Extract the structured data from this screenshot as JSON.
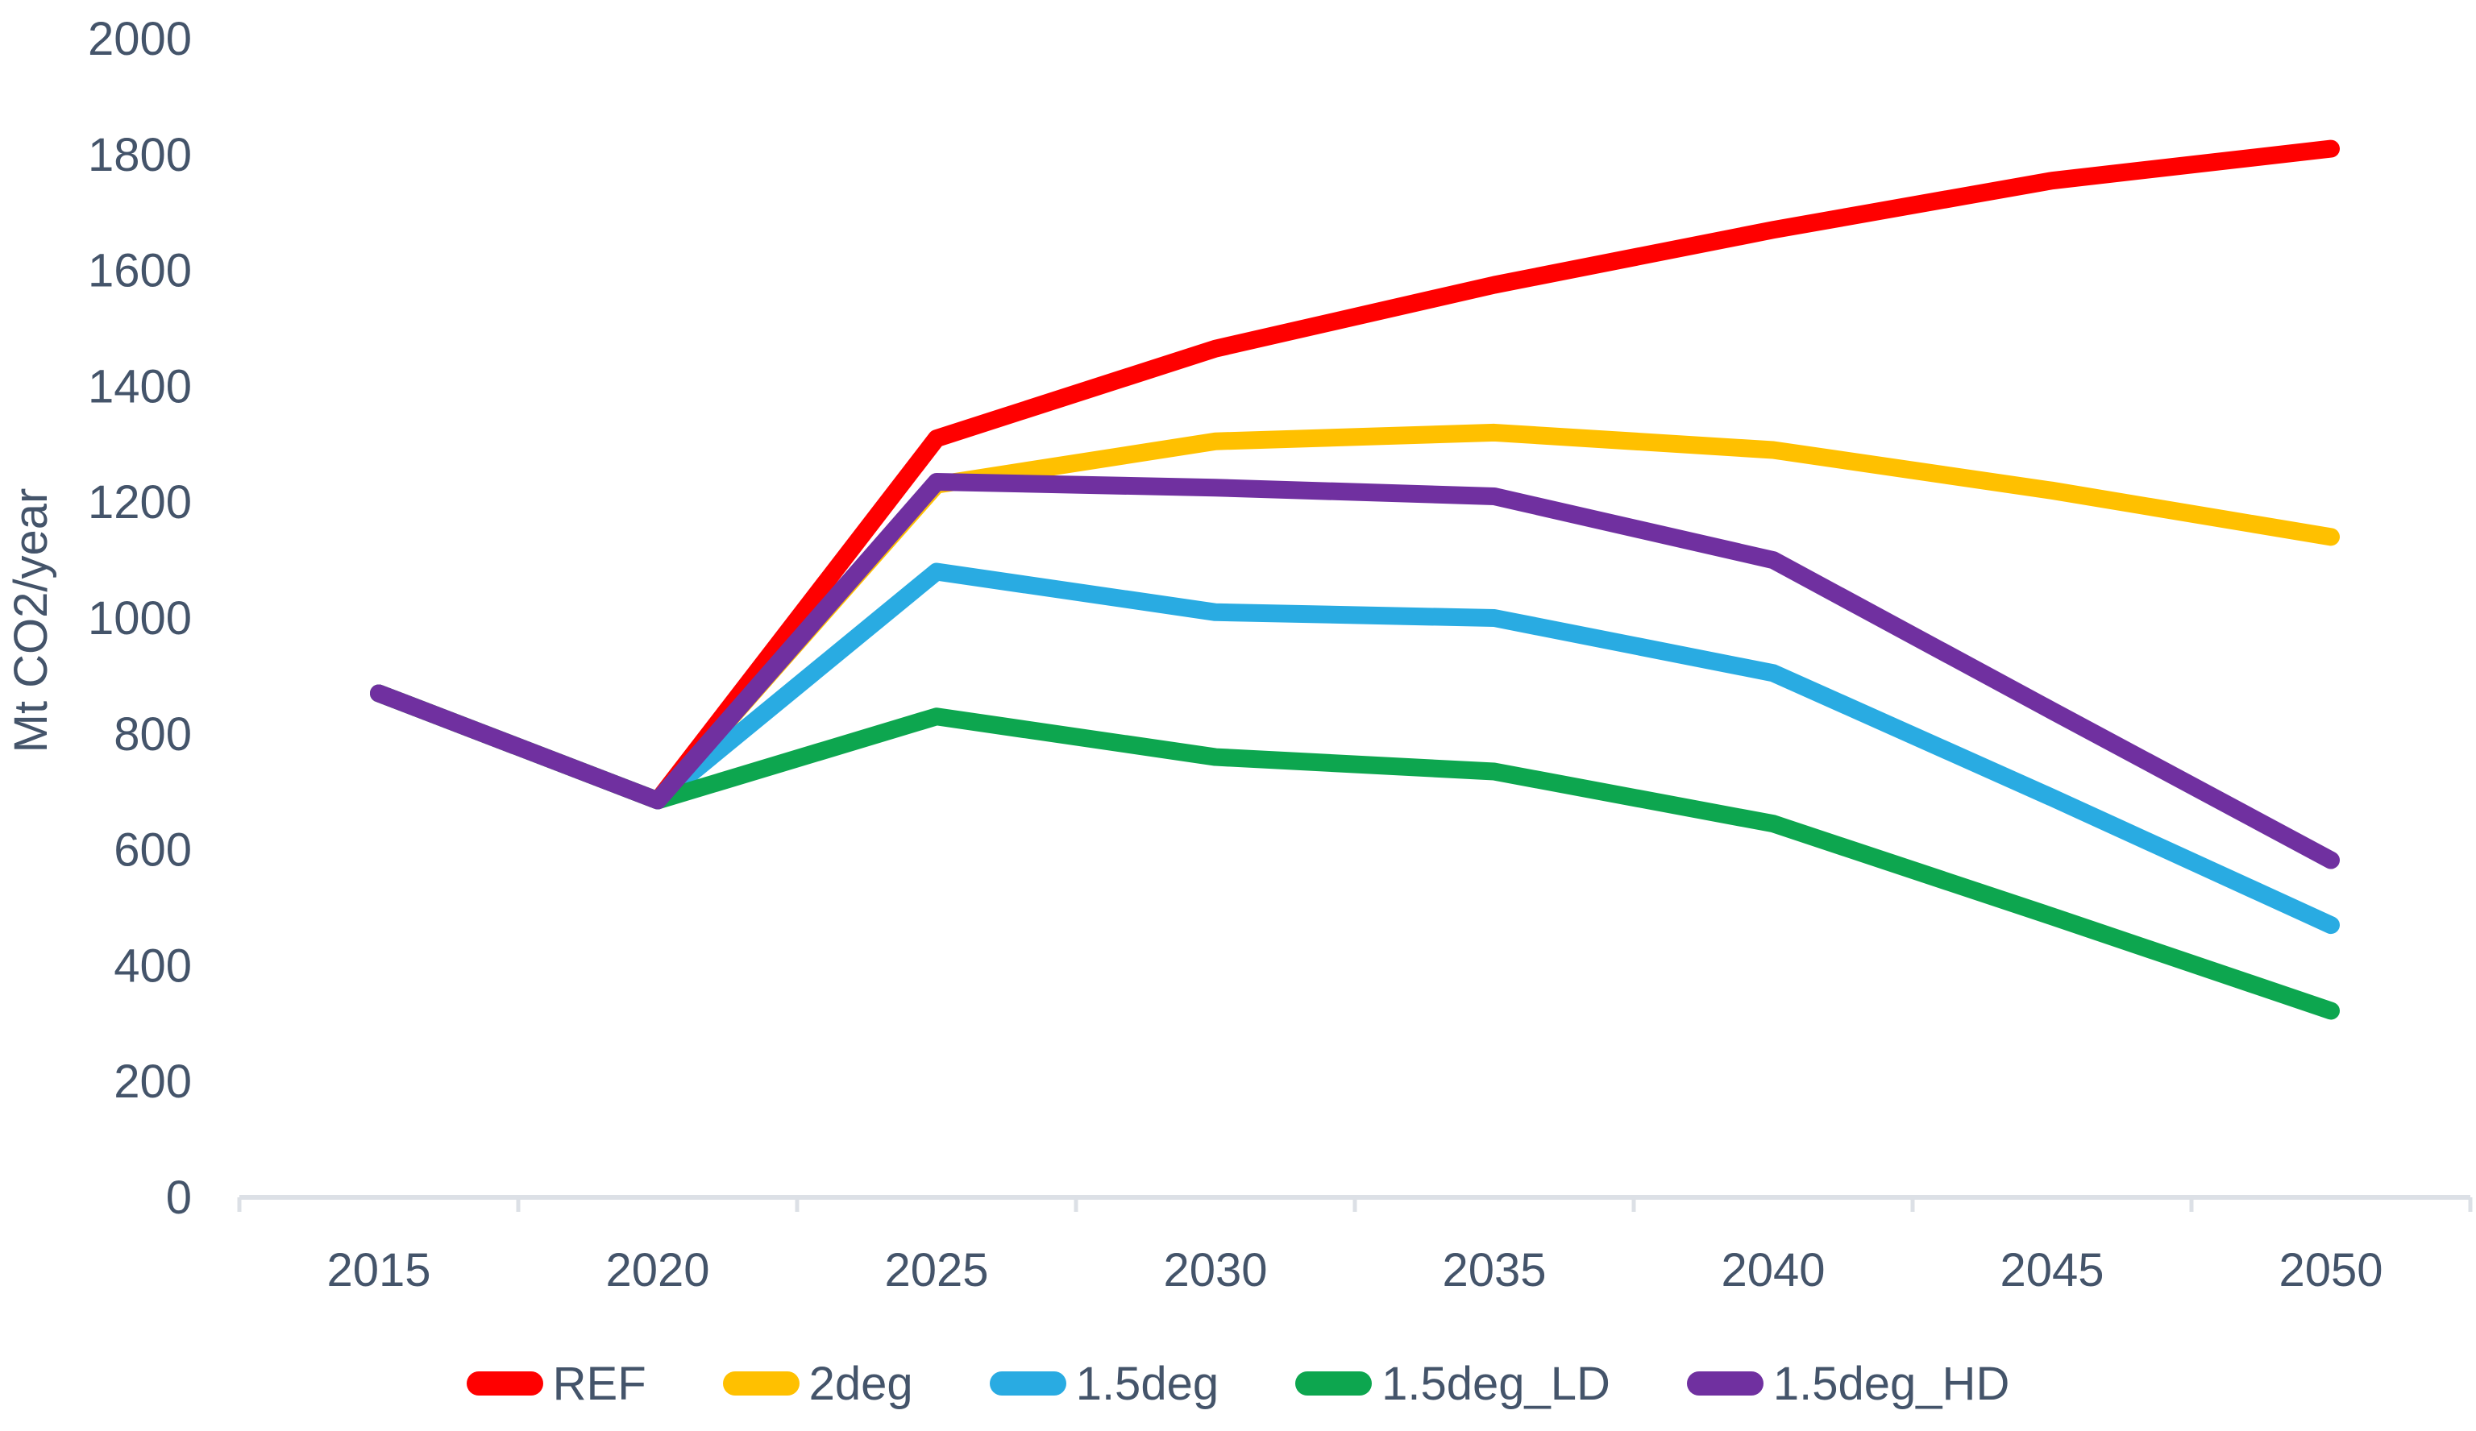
{
  "chart_data": {
    "type": "line",
    "title": "",
    "xlabel": "",
    "ylabel": "Mt CO2/year",
    "x": [
      2015,
      2020,
      2025,
      2030,
      2035,
      2040,
      2045,
      2050
    ],
    "ylim": [
      0,
      2000
    ],
    "ytick_interval": 200,
    "grid": false,
    "legend_position": "bottom",
    "axis_text_color": "#44546A",
    "axis_line_color": "#DCE0E6",
    "series": [
      {
        "name": "REF",
        "color": "#FF0000",
        "values": [
          870,
          685,
          1310,
          1465,
          1575,
          1670,
          1755,
          1810
        ]
      },
      {
        "name": "2deg",
        "color": "#FFC000",
        "values": [
          870,
          685,
          1230,
          1305,
          1320,
          1290,
          1220,
          1140
        ]
      },
      {
        "name": "1.5deg",
        "color": "#29ABE2",
        "values": [
          870,
          685,
          1080,
          1010,
          1000,
          905,
          690,
          470
        ]
      },
      {
        "name": "1.5deg_LD",
        "color": "#0DA64F",
        "values": [
          870,
          685,
          830,
          760,
          735,
          645,
          485,
          322
        ]
      },
      {
        "name": "1.5deg_HD",
        "color": "#7030A0",
        "values": [
          870,
          685,
          1235,
          1225,
          1210,
          1100,
          840,
          582
        ]
      }
    ]
  }
}
